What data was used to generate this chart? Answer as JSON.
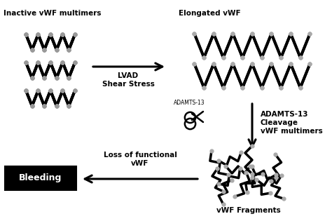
{
  "bg_color": "#ffffff",
  "labels": {
    "inactive": "Inactive vWF multimers",
    "elongated": "Elongated vWF",
    "lvad": "LVAD\nShear Stress",
    "adamts1": "ADAMTS-13",
    "adamts2": "ADAMTS-13\nCleavage\nvWF multimers",
    "loss": "Loss of functional\nvWF",
    "bleeding": "Bleeding",
    "fragments": "vWF Fragments"
  },
  "compact_rows": 3,
  "compact_peaks": 4,
  "elongated_rows": 2,
  "elongated_peaks": 6
}
